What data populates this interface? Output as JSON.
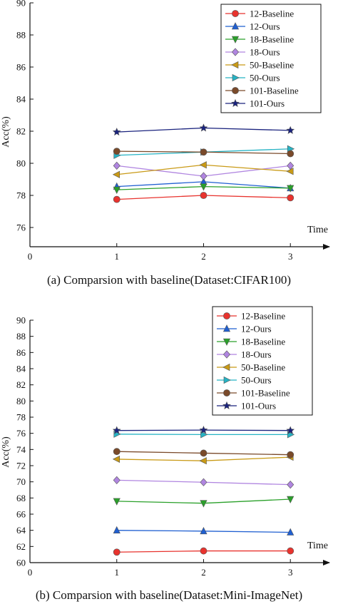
{
  "chart_data": [
    {
      "type": "line",
      "caption": "(a)  Comparsion with baseline(Dataset:CIFAR100)",
      "xlabel": "Time",
      "ylabel": "Acc(%)",
      "x": [
        1,
        2,
        3
      ],
      "x_ticks": [
        "0",
        "1",
        "2",
        "3"
      ],
      "xlim": [
        0,
        3.45
      ],
      "ylim": [
        74.8,
        90
      ],
      "y_ticks": [
        "76",
        "78",
        "80",
        "82",
        "84",
        "86",
        "88",
        "90"
      ],
      "y_tick_values": [
        76,
        78,
        80,
        82,
        84,
        86,
        88,
        90
      ],
      "legend_position": "top-right",
      "series": [
        {
          "name": "12-Baseline",
          "marker": "circle",
          "color": "#e8332e",
          "values": [
            77.75,
            78.0,
            77.85
          ]
        },
        {
          "name": "12-Ours",
          "marker": "triangle-up",
          "color": "#1f5fd1",
          "values": [
            78.55,
            78.85,
            78.45
          ]
        },
        {
          "name": "18-Baseline",
          "marker": "triangle-down",
          "color": "#2aa02a",
          "values": [
            78.35,
            78.55,
            78.45
          ]
        },
        {
          "name": "18-Ours",
          "marker": "diamond",
          "color": "#b085e0",
          "values": [
            79.85,
            79.2,
            79.85
          ]
        },
        {
          "name": "50-Baseline",
          "marker": "triangle-left",
          "color": "#c99a16",
          "values": [
            79.3,
            79.9,
            79.5
          ]
        },
        {
          "name": "50-Ours",
          "marker": "triangle-right",
          "color": "#26b3c4",
          "values": [
            80.5,
            80.7,
            80.9
          ]
        },
        {
          "name": "101-Baseline",
          "marker": "circle",
          "color": "#7a4a2a",
          "values": [
            80.75,
            80.7,
            80.6
          ]
        },
        {
          "name": "101-Ours",
          "marker": "star",
          "color": "#1a237e",
          "values": [
            81.95,
            82.2,
            82.05
          ]
        }
      ]
    },
    {
      "type": "line",
      "caption": "(b)  Comparsion with baseline(Dataset:Mini-ImageNet)",
      "xlabel": "Time",
      "ylabel": "Acc(%)",
      "x": [
        1,
        2,
        3
      ],
      "x_ticks": [
        "0",
        "1",
        "2",
        "3"
      ],
      "xlim": [
        0,
        3.45
      ],
      "ylim": [
        60,
        90
      ],
      "y_ticks": [
        "60",
        "62",
        "64",
        "66",
        "68",
        "70",
        "72",
        "74",
        "76",
        "78",
        "80",
        "82",
        "84",
        "86",
        "88",
        "90"
      ],
      "y_tick_values": [
        60,
        62,
        64,
        66,
        68,
        70,
        72,
        74,
        76,
        78,
        80,
        82,
        84,
        86,
        88,
        90
      ],
      "legend_position": "top-right",
      "series": [
        {
          "name": "12-Baseline",
          "marker": "circle",
          "color": "#e8332e",
          "values": [
            61.3,
            61.45,
            61.45
          ]
        },
        {
          "name": "12-Ours",
          "marker": "triangle-up",
          "color": "#1f5fd1",
          "values": [
            64.0,
            63.9,
            63.75
          ]
        },
        {
          "name": "18-Baseline",
          "marker": "triangle-down",
          "color": "#2aa02a",
          "values": [
            67.6,
            67.35,
            67.85
          ]
        },
        {
          "name": "18-Ours",
          "marker": "diamond",
          "color": "#b085e0",
          "values": [
            70.2,
            69.95,
            69.65
          ]
        },
        {
          "name": "50-Baseline",
          "marker": "triangle-left",
          "color": "#c99a16",
          "values": [
            72.8,
            72.6,
            73.05
          ]
        },
        {
          "name": "50-Ours",
          "marker": "triangle-right",
          "color": "#26b3c4",
          "values": [
            75.9,
            75.85,
            75.85
          ]
        },
        {
          "name": "101-Baseline",
          "marker": "circle",
          "color": "#7a4a2a",
          "values": [
            73.75,
            73.55,
            73.35
          ]
        },
        {
          "name": "101-Ours",
          "marker": "star",
          "color": "#1a237e",
          "values": [
            76.35,
            76.4,
            76.35
          ]
        }
      ]
    }
  ]
}
